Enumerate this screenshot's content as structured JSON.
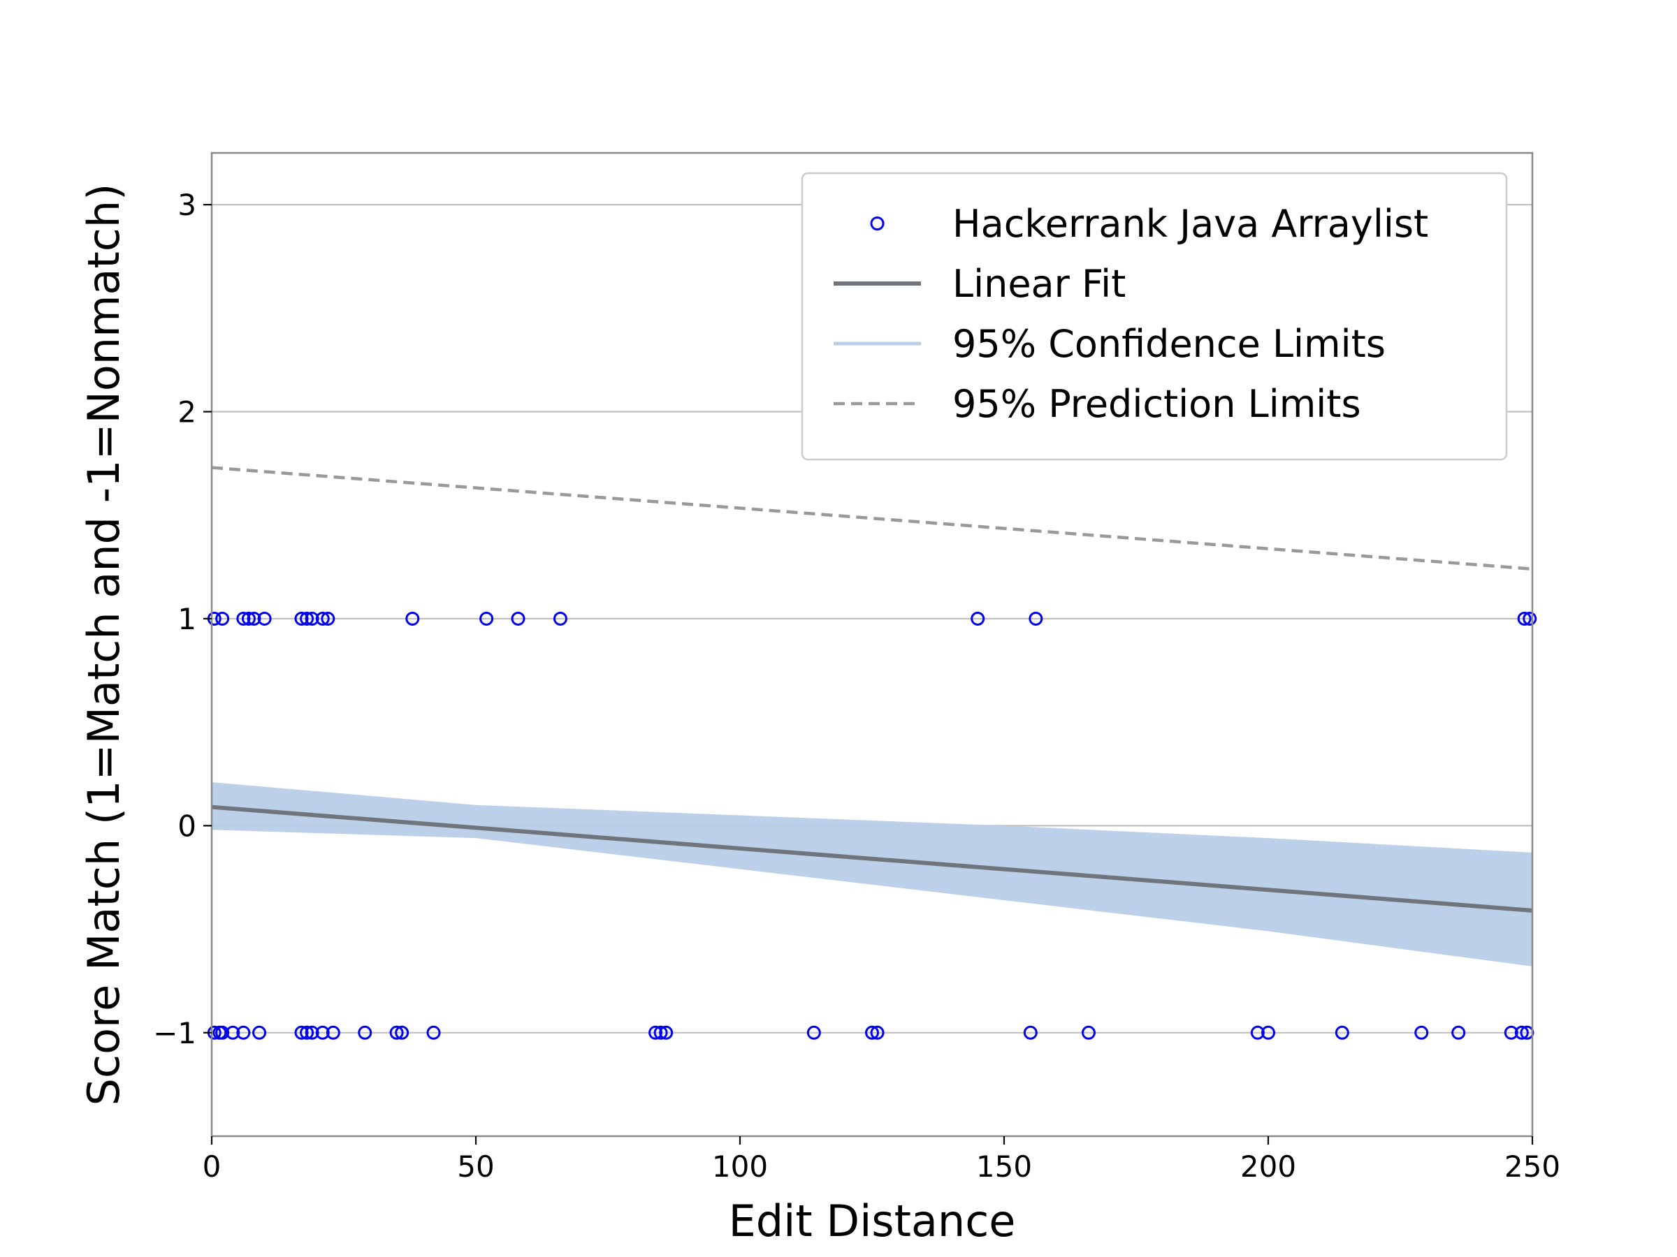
{
  "chart_data": {
    "type": "scatter",
    "title": "",
    "xlabel": "Edit Distance",
    "ylabel": "Score Match (1=Match and -1=Nonmatch)",
    "xlim": [
      0,
      250
    ],
    "ylim": [
      -1.5,
      3.25
    ],
    "xticks": [
      0,
      50,
      100,
      150,
      200,
      250
    ],
    "yticks": [
      -1,
      0,
      1,
      2,
      3
    ],
    "xtick_labels": [
      "0",
      "50",
      "100",
      "150",
      "200",
      "250"
    ],
    "ytick_labels": [
      "−1",
      "0",
      "1",
      "2",
      "3"
    ],
    "grid": "horizontal",
    "legend_position": "top-right",
    "colors": {
      "points": "#0000ee",
      "fit": "#70757d",
      "confidence": "#b8cfe8",
      "prediction": "#999999",
      "grid": "#c0c0c0",
      "frame": "#888888"
    },
    "series": [
      {
        "name": "Hackerrank Java Arraylist",
        "kind": "scatter",
        "points": [
          [
            0.5,
            1
          ],
          [
            2,
            1
          ],
          [
            6,
            1
          ],
          [
            7,
            1
          ],
          [
            8,
            1
          ],
          [
            10,
            1
          ],
          [
            17,
            1
          ],
          [
            18,
            1
          ],
          [
            19,
            1
          ],
          [
            21,
            1
          ],
          [
            22,
            1
          ],
          [
            38,
            1
          ],
          [
            52,
            1
          ],
          [
            58,
            1
          ],
          [
            66,
            1
          ],
          [
            145,
            1
          ],
          [
            156,
            1
          ],
          [
            248.5,
            1
          ],
          [
            249.5,
            1
          ],
          [
            0.5,
            -1
          ],
          [
            1.5,
            -1
          ],
          [
            2,
            -1
          ],
          [
            4,
            -1
          ],
          [
            6,
            -1
          ],
          [
            9,
            -1
          ],
          [
            17,
            -1
          ],
          [
            18,
            -1
          ],
          [
            19,
            -1
          ],
          [
            21,
            -1
          ],
          [
            23,
            -1
          ],
          [
            29,
            -1
          ],
          [
            35,
            -1
          ],
          [
            36,
            -1
          ],
          [
            42,
            -1
          ],
          [
            84,
            -1
          ],
          [
            85,
            -1
          ],
          [
            86,
            -1
          ],
          [
            114,
            -1
          ],
          [
            125,
            -1
          ],
          [
            126,
            -1
          ],
          [
            155,
            -1
          ],
          [
            166,
            -1
          ],
          [
            198,
            -1
          ],
          [
            200,
            -1
          ],
          [
            214,
            -1
          ],
          [
            229,
            -1
          ],
          [
            236,
            -1
          ],
          [
            246,
            -1
          ],
          [
            248,
            -1
          ],
          [
            249,
            -1
          ]
        ]
      },
      {
        "name": "Linear Fit",
        "kind": "line",
        "x": [
          0,
          250
        ],
        "y": [
          0.09,
          -0.41
        ]
      },
      {
        "name": "95% Confidence Limits",
        "kind": "band",
        "x": [
          0,
          50,
          100,
          150,
          200,
          250
        ],
        "lower": [
          -0.02,
          -0.06,
          -0.21,
          -0.36,
          -0.51,
          -0.68
        ],
        "upper": [
          0.21,
          0.1,
          0.05,
          0.0,
          -0.06,
          -0.13
        ]
      },
      {
        "name": "95% Prediction Limits",
        "kind": "dashed",
        "x": [
          0,
          250
        ],
        "y": [
          1.73,
          1.24
        ]
      }
    ]
  }
}
